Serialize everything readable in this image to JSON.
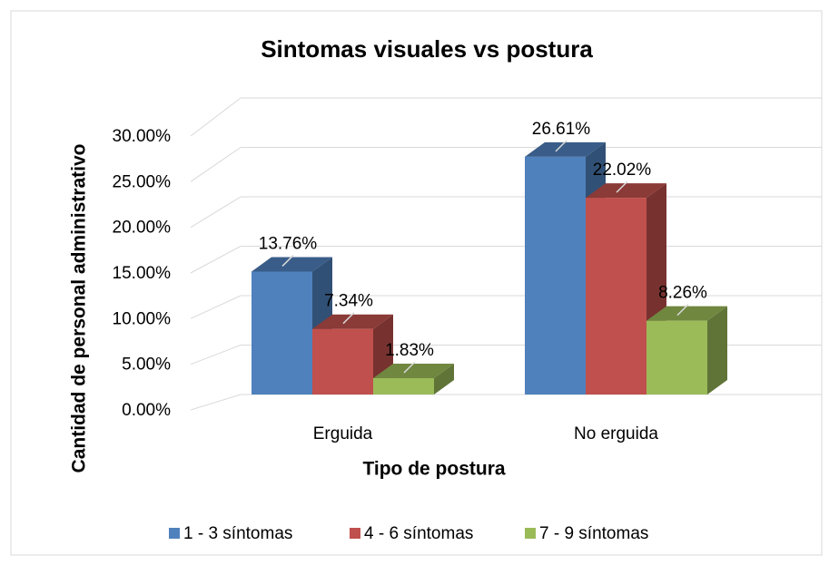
{
  "chart_data": {
    "type": "bar3d",
    "title": "Sintomas visuales vs postura",
    "xlabel": "Tipo de postura",
    "ylabel": "Cantidad de personal administrativo",
    "categories": [
      "Erguida",
      "No erguida"
    ],
    "series": [
      {
        "name": "1 - 3 síntomas",
        "color": "#4f81bd",
        "values": [
          13.76,
          26.61
        ],
        "value_labels": [
          "13.76%",
          "26.61%"
        ]
      },
      {
        "name": "4 - 6 síntomas",
        "color": "#c0504d",
        "values": [
          7.34,
          22.02
        ],
        "value_labels": [
          "7.34%",
          "22.02%"
        ]
      },
      {
        "name": "7 - 9 síntomas",
        "color": "#9bbb59",
        "values": [
          1.83,
          8.26
        ],
        "value_labels": [
          "1.83%",
          "8.26%"
        ]
      }
    ],
    "ylim": [
      0,
      30
    ],
    "yticks": [
      {
        "value": 0,
        "label": "0.00%"
      },
      {
        "value": 5,
        "label": "5.00%"
      },
      {
        "value": 10,
        "label": "10.00%"
      },
      {
        "value": 15,
        "label": "15.00%"
      },
      {
        "value": 20,
        "label": "20.00%"
      },
      {
        "value": 25,
        "label": "25.00%"
      },
      {
        "value": 30,
        "label": "30.00%"
      }
    ],
    "grid": true,
    "legend": "bottom"
  }
}
